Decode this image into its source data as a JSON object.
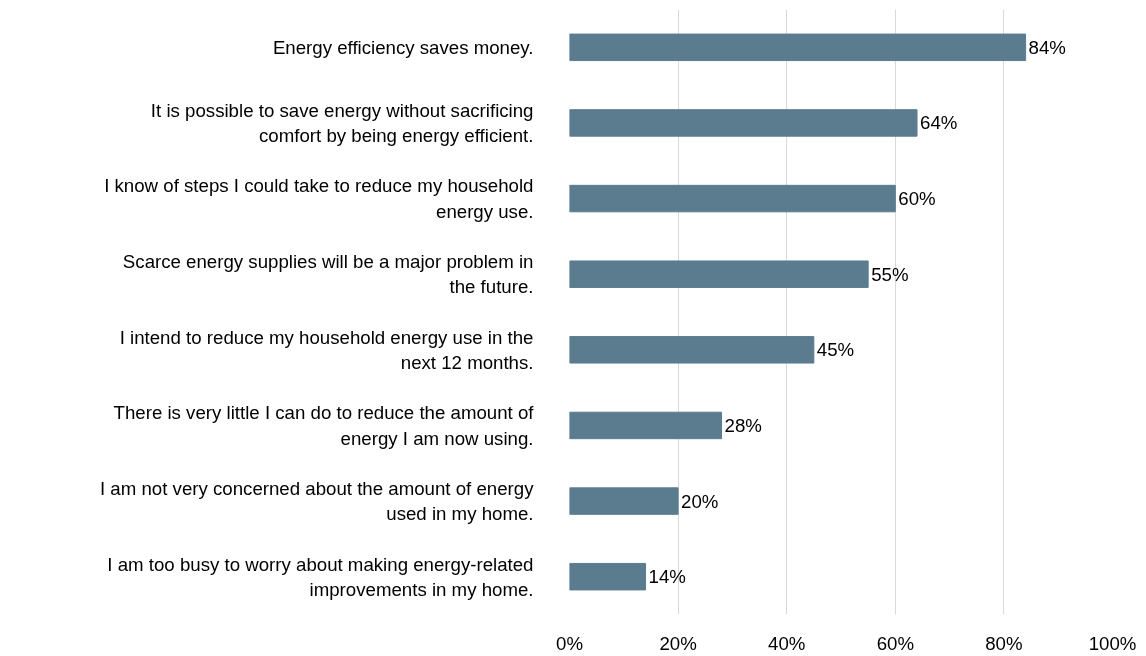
{
  "chart_data": {
    "type": "bar",
    "orientation": "horizontal",
    "categories": [
      "Energy efficiency saves money.",
      "It is possible to save energy without sacrificing\ncomfort by being energy efficient.",
      "I know of steps I could take to reduce my household\nenergy use.",
      "Scarce energy supplies will be a major problem in\nthe future.",
      "I intend to reduce my household energy use in the\nnext 12 months.",
      "There is very little I can do to reduce the amount of\nenergy I am now using.",
      "I am not very concerned about the amount of energy\nused in my home.",
      "I am too busy to worry about making energy-related\nimprovements in my home."
    ],
    "values": [
      84,
      64,
      60,
      55,
      45,
      28,
      20,
      14
    ],
    "value_labels": [
      "84%",
      "64%",
      "60%",
      "55%",
      "45%",
      "28%",
      "20%",
      "14%"
    ],
    "color": "#5b7c8f",
    "xlim": [
      0,
      100
    ],
    "xticks": [
      {
        "value": 0,
        "label": "0%"
      },
      {
        "value": 20,
        "label": "20%"
      },
      {
        "value": 40,
        "label": "40%"
      },
      {
        "value": 60,
        "label": "60%"
      },
      {
        "value": 80,
        "label": "80%"
      },
      {
        "value": 100,
        "label": "100%"
      }
    ],
    "grid": "x"
  }
}
